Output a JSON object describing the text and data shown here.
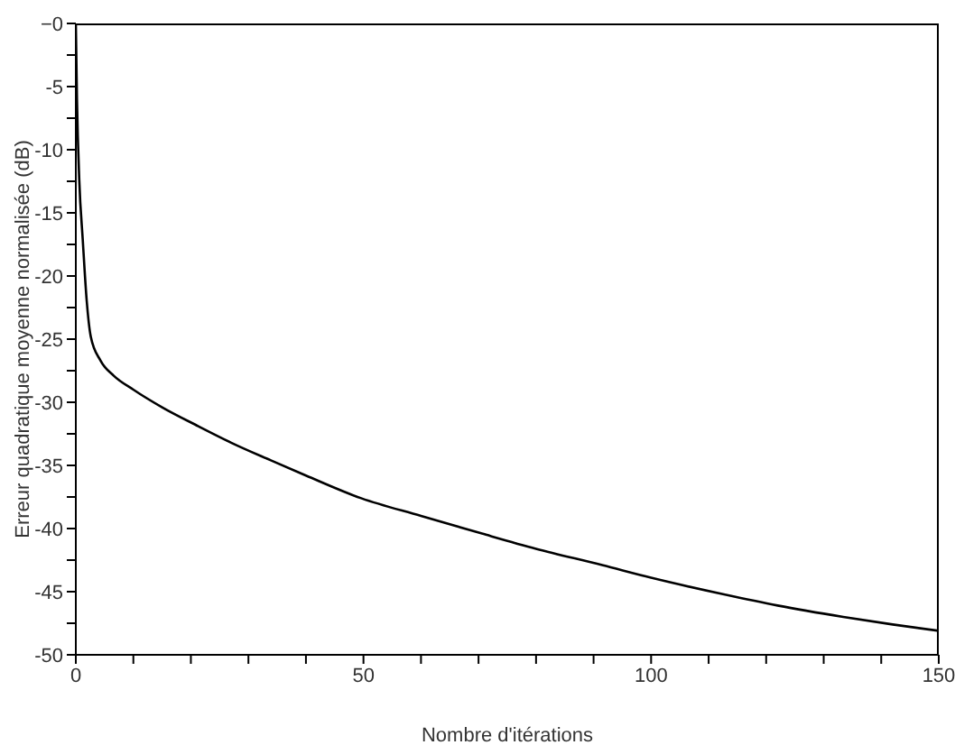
{
  "chart_data": {
    "type": "line",
    "xlabel": "Nombre d'itérations",
    "ylabel": "Erreur quadratique moyenne normalisée (dB)",
    "x": [
      0,
      0.2,
      0.6,
      1.2,
      1.9,
      2.6,
      4.3,
      6.6,
      10,
      15,
      21.3,
      27,
      33.9,
      40,
      49.6,
      60,
      70.6,
      80,
      91.5,
      100,
      112.5,
      122,
      133.4,
      142,
      150
    ],
    "series": [
      {
        "color": "#000000",
        "values": [
          0,
          -6,
          -12.4,
          -17.1,
          -22,
          -24.8,
          -26.7,
          -27.9,
          -29,
          -30.4,
          -31.9,
          -33.2,
          -34.6,
          -35.8,
          -37.6,
          -39,
          -40.4,
          -41.6,
          -42.9,
          -43.9,
          -45.2,
          -46.1,
          -47,
          -47.6,
          -48.1
        ]
      }
    ],
    "xlim": [
      0,
      150
    ],
    "xticks": [
      0,
      {
        "value": 10,
        "label": null
      },
      {
        "value": 20,
        "label": null
      },
      {
        "value": 30,
        "label": null
      },
      {
        "value": 40,
        "label": null
      },
      50,
      {
        "value": 60,
        "label": null
      },
      {
        "value": 70,
        "label": null
      },
      {
        "value": 80,
        "label": null
      },
      {
        "value": 90,
        "label": null
      },
      100,
      {
        "value": 110,
        "label": null
      },
      {
        "value": 120,
        "label": null
      },
      {
        "value": 130,
        "label": null
      },
      {
        "value": 140,
        "label": null
      },
      150
    ],
    "ylim": [
      -50,
      0
    ],
    "yticks": [
      {
        "value": 0,
        "label": "−0"
      },
      {
        "value": -2.5,
        "label": null
      },
      -5,
      {
        "value": -7.5,
        "label": null
      },
      -10,
      {
        "value": -12.5,
        "label": null
      },
      -15,
      {
        "value": -17.5,
        "label": null
      },
      -20,
      {
        "value": -22.5,
        "label": null
      },
      -25,
      {
        "value": -27.5,
        "label": null
      },
      -30,
      {
        "value": -32.5,
        "label": null
      },
      -35,
      {
        "value": -37.5,
        "label": null
      },
      -40,
      {
        "value": -42.5,
        "label": null
      },
      -45,
      {
        "value": -47.5,
        "label": null
      },
      -50
    ]
  }
}
